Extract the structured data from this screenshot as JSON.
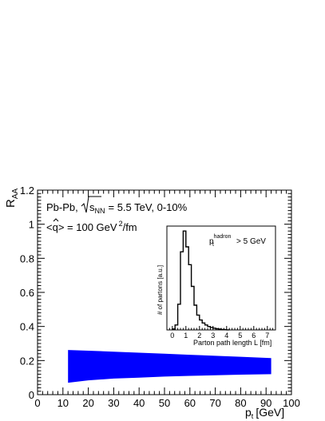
{
  "chart_data": [
    {
      "type": "area",
      "ylabel_main": "R",
      "ylabel_sub": "AA",
      "xlabel_main": "p",
      "xlabel_sub": "t",
      "xlabel_unit": "[GeV]",
      "xlim": [
        0,
        100
      ],
      "ylim": [
        0,
        1.2
      ],
      "xticks": [
        "0",
        "10",
        "20",
        "30",
        "40",
        "50",
        "60",
        "70",
        "80",
        "90",
        "100"
      ],
      "yticks": [
        "0",
        "0.2",
        "0.4",
        "0.6",
        "0.8",
        "1",
        "1.2"
      ],
      "grid": false,
      "annotation1": {
        "prefix": "Pb-Pb,",
        "s": "s",
        "sub": "NN",
        "rest": "= 5.5 TeV, 0-10%"
      },
      "annotation2": {
        "lhs": "<",
        "q": "q",
        "rhs": "> = 100 GeV",
        "sup": "2",
        "unit": "/fm"
      },
      "band": {
        "x": [
          12,
          20,
          30,
          40,
          50,
          60,
          70,
          80,
          92
        ],
        "upper": [
          0.262,
          0.258,
          0.252,
          0.246,
          0.24,
          0.234,
          0.228,
          0.222,
          0.214
        ],
        "lower": [
          0.07,
          0.084,
          0.094,
          0.1,
          0.106,
          0.11,
          0.114,
          0.117,
          0.12
        ],
        "color": "#0000ff"
      }
    },
    {
      "type": "line",
      "xlabel": "Parton path length L [fm]",
      "ylabel": "# of partons [a.u.]",
      "xlim": [
        -0.4,
        7.6
      ],
      "ylim": [
        0,
        1.05
      ],
      "xticks": [
        "0",
        "1",
        "2",
        "3",
        "4",
        "5",
        "6",
        "7"
      ],
      "label_p": "p",
      "label_sup": "hadron",
      "label_sub": "t",
      "label_rest": "> 5 GeV",
      "bin_width": 0.2,
      "x": [
        0.0,
        0.2,
        0.4,
        0.6,
        0.8,
        1.0,
        1.2,
        1.4,
        1.6,
        1.8,
        2.0,
        2.2,
        2.4,
        2.6,
        2.8,
        3.0,
        3.2,
        3.4,
        3.6,
        3.8,
        4.0
      ],
      "values": [
        0.01,
        0.05,
        0.26,
        0.79,
        1.0,
        0.84,
        0.66,
        0.44,
        0.25,
        0.15,
        0.1,
        0.07,
        0.05,
        0.035,
        0.025,
        0.018,
        0.012,
        0.008,
        0.005,
        0.003,
        0.001
      ]
    }
  ]
}
